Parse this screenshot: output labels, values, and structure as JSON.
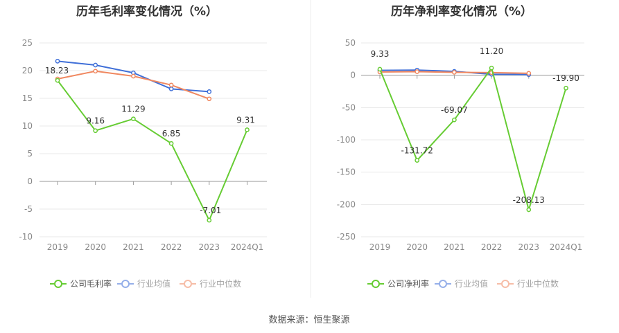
{
  "chart_data": [
    {
      "type": "line",
      "title": "历年毛利率变化情况（%）",
      "categories": [
        "2019",
        "2020",
        "2021",
        "2022",
        "2023",
        "2024Q1"
      ],
      "ylim": [
        -10,
        25
      ],
      "yticks": [
        25,
        20,
        15,
        10,
        5,
        0,
        -5,
        -10
      ],
      "series": [
        {
          "name": "公司毛利率",
          "color": "#66cc33",
          "values": [
            18.23,
            9.16,
            11.29,
            6.85,
            -7.01,
            9.31
          ],
          "labels": [
            "18.23",
            "9.16",
            "11.29",
            "6.85",
            "-7.01",
            "9.31"
          ]
        },
        {
          "name": "行业均值",
          "color": "#3f6fd8",
          "values": [
            21.7,
            21.0,
            19.6,
            16.7,
            16.2,
            null
          ]
        },
        {
          "name": "行业中位数",
          "color": "#f08860",
          "values": [
            18.5,
            19.9,
            19.0,
            17.4,
            14.9,
            null
          ]
        }
      ]
    },
    {
      "type": "line",
      "title": "历年净利率变化情况（%）",
      "categories": [
        "2019",
        "2020",
        "2021",
        "2022",
        "2023",
        "2024Q1"
      ],
      "ylim": [
        -250,
        50
      ],
      "yticks": [
        50,
        0,
        -50,
        -100,
        -150,
        -200,
        -250
      ],
      "series": [
        {
          "name": "公司净利率",
          "color": "#66cc33",
          "values": [
            9.33,
            -131.72,
            -69.07,
            11.2,
            -208.13,
            -19.9
          ],
          "labels": [
            "9.33",
            "-131.72",
            "-69.07",
            "11.20",
            "-208.13",
            "-19.90"
          ]
        },
        {
          "name": "行业均值",
          "color": "#3f6fd8",
          "values": [
            7.5,
            8.0,
            6.0,
            1.5,
            1.0,
            null
          ]
        },
        {
          "name": "行业中位数",
          "color": "#f08860",
          "values": [
            5.0,
            5.5,
            4.5,
            4.0,
            3.0,
            null
          ]
        }
      ]
    }
  ],
  "source": "数据来源：恒生聚源"
}
